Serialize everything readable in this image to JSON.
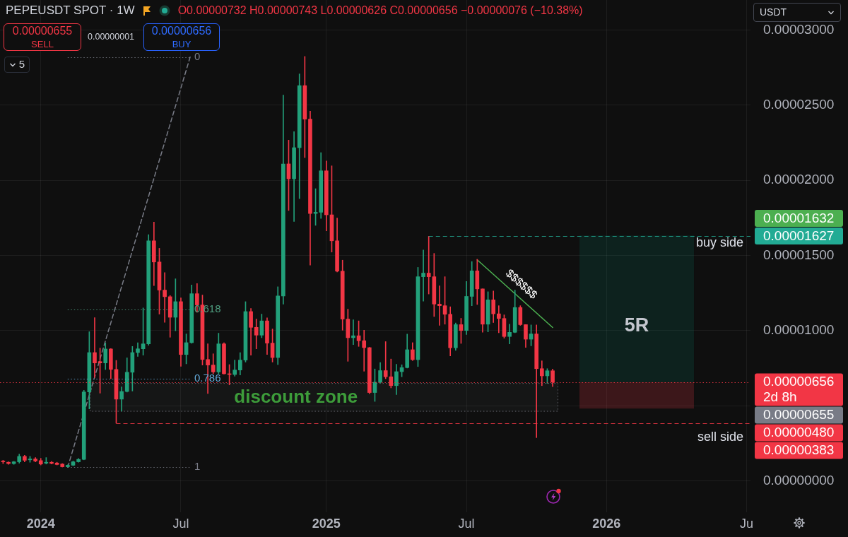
{
  "chart_data": {
    "type": "candlestick",
    "title": "PEPEUSDT SPOT · 1W",
    "subtitle": "O0.00000732 H0.00000743 L0.00000626 C0.00000656 −0.00000076 (−10.38%)",
    "x": [
      "2023-11-13",
      "2023-11-20",
      "2023-11-27",
      "2023-12-04",
      "2023-12-11",
      "2023-12-18",
      "2023-12-25",
      "2024-01-01",
      "2024-01-08",
      "2024-01-15",
      "2024-01-22",
      "2024-01-29",
      "2024-02-05",
      "2024-02-12",
      "2024-02-19",
      "2024-02-26",
      "2024-03-04",
      "2024-03-11",
      "2024-03-18",
      "2024-03-25",
      "2024-04-01",
      "2024-04-08",
      "2024-04-15",
      "2024-04-22",
      "2024-04-29",
      "2024-05-06",
      "2024-05-13",
      "2024-05-20",
      "2024-05-27",
      "2024-06-03",
      "2024-06-10",
      "2024-06-17",
      "2024-06-24",
      "2024-07-01",
      "2024-07-08",
      "2024-07-15",
      "2024-07-22",
      "2024-07-29",
      "2024-08-05",
      "2024-08-12",
      "2024-08-19",
      "2024-08-26",
      "2024-09-02",
      "2024-09-09",
      "2024-09-16",
      "2024-09-23",
      "2024-09-30",
      "2024-10-07",
      "2024-10-14",
      "2024-10-21",
      "2024-10-28",
      "2024-11-04",
      "2024-11-11",
      "2024-11-18",
      "2024-11-25",
      "2024-12-02",
      "2024-12-09",
      "2024-12-16",
      "2024-12-23",
      "2024-12-30",
      "2025-01-06",
      "2025-01-13",
      "2025-01-20",
      "2025-01-27",
      "2025-02-03",
      "2025-02-10",
      "2025-02-17",
      "2025-02-24",
      "2025-03-03",
      "2025-03-10",
      "2025-03-17",
      "2025-03-24",
      "2025-03-31",
      "2025-04-07",
      "2025-04-14",
      "2025-04-21",
      "2025-04-28",
      "2025-05-05",
      "2025-05-12",
      "2025-05-19",
      "2025-05-26",
      "2025-06-02",
      "2025-06-09",
      "2025-06-16",
      "2025-06-23",
      "2025-06-30",
      "2025-07-07",
      "2025-07-14",
      "2025-07-21",
      "2025-07-28",
      "2025-08-04",
      "2025-08-11",
      "2025-08-18",
      "2025-08-25",
      "2025-09-01",
      "2025-09-08",
      "2025-09-15",
      "2025-09-22",
      "2025-09-29",
      "2025-10-06",
      "2025-10-13",
      "2025-10-20",
      "2025-10-27"
    ],
    "ohlc": [
      [
        1.31e-06,
        1.36e-06,
        1.14e-06,
        1.26e-06
      ],
      [
        1.23e-06,
        1.26e-06,
        1.09e-06,
        1.14e-06
      ],
      [
        1.14e-06,
        1.29e-06,
        1.09e-06,
        1.26e-06
      ],
      [
        1.26e-06,
        1.77e-06,
        1.17e-06,
        1.62e-06
      ],
      [
        1.62e-06,
        1.7e-06,
        1.26e-06,
        1.36e-06
      ],
      [
        1.39e-06,
        1.62e-06,
        1.23e-06,
        1.45e-06
      ],
      [
        1.45e-06,
        1.54e-06,
        1.26e-06,
        1.31e-06
      ],
      [
        1.34e-06,
        1.49e-06,
        1.05e-06,
        1.11e-06
      ],
      [
        1.17e-06,
        1.54e-06,
        1.11e-06,
        1.23e-06
      ],
      [
        1.23e-06,
        1.28e-06,
        1.11e-06,
        1.15e-06
      ],
      [
        1.18e-06,
        1.23e-06,
        1.05e-06,
        1.08e-06
      ],
      [
        1.11e-06,
        1.14e-06,
        9.1e-07,
        9.3e-07
      ],
      [
        9.3e-07,
        1.06e-06,
        9e-07,
        1.03e-06
      ],
      [
        1.03e-06,
        1.31e-06,
        1e-06,
        1.26e-06
      ],
      [
        1.26e-06,
        1.48e-06,
        1.23e-06,
        1.42e-06
      ],
      [
        1.42e-06,
        6.02e-06,
        1.39e-06,
        5.91e-06
      ],
      [
        5.91e-06,
        9.92e-06,
        4.78e-06,
        8.53e-06
      ],
      [
        8.53e-06,
        1.085e-05,
        6.87e-06,
        7.84e-06
      ],
      [
        7.93e-06,
        8.83e-06,
        5.83e-06,
        7.84e-06
      ],
      [
        7.84e-06,
        9.17e-06,
        7.4e-06,
        8.77e-06
      ],
      [
        8.77e-06,
        8.8e-06,
        6.79e-06,
        7.41e-06
      ],
      [
        7.41e-06,
        8.01e-06,
        3.83e-06,
        5.43e-06
      ],
      [
        5.43e-06,
        6.25e-06,
        4.63e-06,
        5.94e-06
      ],
      [
        5.94e-06,
        8.18e-06,
        5.9e-06,
        7.22e-06
      ],
      [
        7.22e-06,
        8.94e-06,
        5.97e-06,
        8.53e-06
      ],
      [
        8.53e-06,
        9.19e-06,
        8.28e-06,
        8.78e-06
      ],
      [
        8.78e-06,
        1.15e-05,
        8.36e-06,
        9.11e-06
      ],
      [
        9.11e-06,
        1.638e-05,
        9.02e-06,
        1.597e-05
      ],
      [
        1.597e-05,
        1.721e-05,
        1.299e-05,
        1.456e-05
      ],
      [
        1.456e-05,
        1.547e-05,
        1.109e-05,
        1.269e-05
      ],
      [
        1.269e-05,
        1.385e-05,
        1.055e-05,
        1.225e-05
      ],
      [
        1.225e-05,
        1.233e-05,
        9.55e-06,
        1.088e-05
      ],
      [
        1.088e-05,
        1.344e-05,
        9.98e-06,
        1.192e-05
      ],
      [
        1.192e-05,
        1.217e-05,
        7.62e-06,
        8.4e-06
      ],
      [
        8.4e-06,
        9.77e-06,
        7.78e-06,
        9.19e-06
      ],
      [
        9.19e-06,
        1.303e-05,
        9.15e-06,
        1.245e-05
      ],
      [
        1.245e-05,
        1.312e-05,
        1.121e-05,
        1.17e-05
      ],
      [
        1.17e-05,
        1.236e-05,
        7.7e-06,
        8.07e-06
      ],
      [
        8.07e-06,
        9.11e-06,
        5.8e-06,
        7.7e-06
      ],
      [
        7.7e-06,
        8.45e-06,
        7.12e-06,
        7.24e-06
      ],
      [
        7.24e-06,
        9.82e-06,
        7.12e-06,
        9.11e-06
      ],
      [
        9.11e-06,
        9.19e-06,
        7.1e-06,
        7.12e-06
      ],
      [
        7.12e-06,
        7.73e-06,
        6.38e-06,
        7.07e-06
      ],
      [
        7.07e-06,
        8.03e-06,
        6.96e-06,
        7.37e-06
      ],
      [
        7.37e-06,
        8.53e-06,
        7.04e-06,
        8.03e-06
      ],
      [
        8.03e-06,
        1.192e-05,
        7.9e-06,
        1.126e-05
      ],
      [
        1.126e-05,
        1.147e-05,
        8.36e-06,
        1.021e-05
      ],
      [
        1.021e-05,
        1.076e-05,
        8.78e-06,
        9.69e-06
      ],
      [
        9.69e-06,
        1.109e-05,
        9.52e-06,
        1.064e-05
      ],
      [
        1.064e-05,
        1.084e-05,
        8.4e-06,
        9.16e-06
      ],
      [
        9.16e-06,
        1.01e-05,
        7.9e-06,
        8.2e-06
      ],
      [
        8.2e-06,
        1.291e-05,
        7.73e-06,
        1.23e-05
      ],
      [
        1.23e-05,
        2.567e-05,
        1.175e-05,
        2.109e-05
      ],
      [
        2.109e-05,
        2.267e-05,
        1.799e-05,
        2.01e-05
      ],
      [
        2.01e-05,
        2.324e-05,
        1.726e-05,
        2.217e-05
      ],
      [
        2.217e-05,
        2.708e-05,
        1.878e-05,
        2.63e-05
      ],
      [
        2.63e-05,
        2.824e-05,
        2.151e-05,
        2.407e-05
      ],
      [
        2.407e-05,
        2.46e-05,
        1.435e-05,
        1.779e-05
      ],
      [
        1.779e-05,
        1.944e-05,
        1.7e-05,
        1.787e-05
      ],
      [
        1.787e-05,
        2.184e-05,
        1.746e-05,
        2.063e-05
      ],
      [
        2.063e-05,
        2.129e-05,
        1.663e-05,
        1.77e-05
      ],
      [
        1.77e-05,
        2.096e-05,
        1.522e-05,
        1.597e-05
      ],
      [
        1.597e-05,
        1.749e-05,
        1.39e-05,
        1.395e-05
      ],
      [
        1.395e-05,
        1.468e-05,
        1.002e-05,
        1.076e-05
      ],
      [
        1.076e-05,
        1.142e-05,
        7.95e-06,
        9.52e-06
      ],
      [
        9.52e-06,
        1.071e-05,
        9.06e-06,
        9.65e-06
      ],
      [
        9.65e-06,
        1.064e-05,
        8.94e-06,
        9.32e-06
      ],
      [
        9.32e-06,
        1.002e-05,
        7.29e-06,
        8.86e-06
      ],
      [
        8.86e-06,
        8.88e-06,
        5.79e-06,
        5.87e-06
      ],
      [
        5.87e-06,
        7.44e-06,
        5.28e-06,
        6.56e-06
      ],
      [
        6.56e-06,
        7.87e-06,
        6.5e-06,
        7.33e-06
      ],
      [
        7.33e-06,
        9.26e-06,
        6.79e-06,
        6.92e-06
      ],
      [
        6.92e-06,
        8.1e-06,
        6.18e-06,
        6.33e-06
      ],
      [
        6.33e-06,
        7.75e-06,
        5.74e-06,
        7.26e-06
      ],
      [
        7.26e-06,
        7.72e-06,
        6.92e-06,
        7.53e-06
      ],
      [
        7.53e-06,
        9.76e-06,
        7.5e-06,
        8.72e-06
      ],
      [
        8.72e-06,
        9.19e-06,
        8e-06,
        8.06e-06
      ],
      [
        8.06e-06,
        1.42e-05,
        7.6e-06,
        1.358e-05
      ],
      [
        1.358e-05,
        1.536e-05,
        1.196e-05,
        1.382e-05
      ],
      [
        1.382e-05,
        1.627e-05,
        1.243e-05,
        1.358e-05
      ],
      [
        1.358e-05,
        1.513e-05,
        1.093e-05,
        1.176e-05
      ],
      [
        1.176e-05,
        1.297e-05,
        1.034e-05,
        1.165e-05
      ],
      [
        1.165e-05,
        1.358e-05,
        1.042e-05,
        1.108e-05
      ],
      [
        1.108e-05,
        1.158e-05,
        8.31e-06,
        8.85e-06
      ],
      [
        8.85e-06,
        1.05e-05,
        8.68e-06,
        1.039e-05
      ],
      [
        1.039e-05,
        1.081e-05,
        9.14e-06,
        1e-05
      ],
      [
        1e-05,
        1.327e-05,
        9.73e-06,
        1.227e-05
      ],
      [
        1.227e-05,
        1.459e-05,
        1.165e-05,
        1.397e-05
      ],
      [
        1.397e-05,
        1.474e-05,
        1.173e-05,
        1.277e-05
      ],
      [
        1.277e-05,
        1.277e-05,
        9.88e-06,
        1.042e-05
      ],
      [
        1.042e-05,
        1.258e-05,
        9.91e-06,
        1.204e-05
      ],
      [
        1.204e-05,
        1.263e-05,
        1.053e-05,
        1.111e-05
      ],
      [
        1.111e-05,
        1.165e-05,
        9.85e-06,
        1.08e-05
      ],
      [
        1.08e-05,
        1.104e-05,
        9.49e-06,
        9.6e-06
      ],
      [
        9.6e-06,
        1.042e-05,
        9.11e-06,
        9.88e-06
      ],
      [
        9.88e-06,
        1.269e-05,
        9.85e-06,
        1.153e-05
      ],
      [
        1.153e-05,
        1.165e-05,
        1.034e-05,
        1.039e-05
      ],
      [
        1.039e-05,
        1.039e-05,
        8.88e-06,
        9.42e-06
      ],
      [
        9.42e-06,
        1.037e-05,
        8.98e-06,
        9.77e-06
      ],
      [
        9.77e-06,
        1.037e-05,
        2.87e-06,
        7.46e-06
      ],
      [
        7.46e-06,
        7.98e-06,
        6.33e-06,
        6.98e-06
      ],
      [
        6.98e-06,
        7.46e-06,
        6.48e-06,
        7.32e-06
      ],
      [
        7.32e-06,
        7.43e-06,
        6.26e-06,
        6.56e-06
      ]
    ],
    "colors": [
      "#f23645",
      "#f23645",
      "#22a07a",
      "#22a07a",
      "#f23645",
      "#22a07a",
      "#f23645",
      "#f23645",
      "#22a07a",
      "#f23645",
      "#f23645",
      "#f23645",
      "#22a07a",
      "#22a07a",
      "#22a07a",
      "#22a07a",
      "#22a07a",
      "#f23645",
      "#f23645",
      "#22a07a",
      "#f23645",
      "#f23645",
      "#22a07a",
      "#22a07a",
      "#22a07a",
      "#22a07a",
      "#22a07a",
      "#22a07a",
      "#f23645",
      "#f23645",
      "#f23645",
      "#f23645",
      "#22a07a",
      "#f23645",
      "#22a07a",
      "#22a07a",
      "#f23645",
      "#f23645",
      "#f23645",
      "#f23645",
      "#22a07a",
      "#f23645",
      "#f23645",
      "#22a07a",
      "#22a07a",
      "#22a07a",
      "#f23645",
      "#f23645",
      "#22a07a",
      "#f23645",
      "#f23645",
      "#22a07a",
      "#22a07a",
      "#f23645",
      "#22a07a",
      "#22a07a",
      "#f23645",
      "#f23645",
      "#22a07a",
      "#22a07a",
      "#f23645",
      "#f23645",
      "#f23645",
      "#f23645",
      "#f23645",
      "#22a07a",
      "#f23645",
      "#f23645",
      "#f23645",
      "#22a07a",
      "#22a07a",
      "#f23645",
      "#f23645",
      "#22a07a",
      "#22a07a",
      "#22a07a",
      "#f23645",
      "#22a07a",
      "#22a07a",
      "#f23645",
      "#f23645",
      "#f23645",
      "#f23645",
      "#f23645",
      "#22a07a",
      "#f23645",
      "#22a07a",
      "#22a07a",
      "#f23645",
      "#f23645",
      "#22a07a",
      "#f23645",
      "#f23645",
      "#f23645",
      "#22a07a",
      "#22a07a",
      "#f23645",
      "#f23645",
      "#22a07a",
      "#f23645",
      "#f23645",
      "#22a07a",
      "#f23645"
    ],
    "series": [
      {
        "type": "line",
        "x": [
          "2024-02-05",
          "2024-07-13"
        ],
        "values": [
          9e-07,
          2.82e-05
        ],
        "color": "#787b86",
        "line_style": "dashed"
      },
      {
        "type": "line",
        "x": [
          "2025-07-21",
          "2025-10-27"
        ],
        "values": [
          1.47e-05,
          1.02e-05
        ],
        "color": "#4caf50",
        "line_style": "solid"
      }
    ],
    "xlim": [
      "2023-11-09",
      "2026-07-11"
    ],
    "xticks": [
      {
        "value": "2024-01-01",
        "label": "2024"
      },
      {
        "value": "2024-07-01",
        "label": "Jul"
      },
      {
        "value": "2025-01-06",
        "label": "2025"
      },
      {
        "value": "2025-07-07",
        "label": "Jul"
      },
      {
        "value": "2026-01-05",
        "label": "2026"
      },
      {
        "value": "2026-07-06",
        "label": "Ju"
      }
    ],
    "ylim": [
      -2.1e-06,
      3.2e-05
    ],
    "yticks": [
      {
        "value": 0,
        "label": "0.00000000"
      },
      {
        "value": 5e-06,
        "label": null
      },
      {
        "value": 1e-05,
        "label": "0.00001000"
      },
      {
        "value": 1.5e-05,
        "label": "0.00001500"
      },
      {
        "value": 2e-05,
        "label": "0.00002000"
      },
      {
        "value": 2.5e-05,
        "label": "0.00002500"
      },
      {
        "value": 3e-05,
        "label": "0.00003000"
      }
    ],
    "grid": true,
    "bands": [
      {
        "axis": "y",
        "from": 4.6e-06,
        "to": 6.5e-06,
        "label": "discount zone",
        "color": "#787b86"
      },
      {
        "axis": "y",
        "from": 6.56e-06,
        "to": 1.632e-05,
        "label": "5R",
        "color": "#089981"
      },
      {
        "axis": "y",
        "from": 4.8e-06,
        "to": 6.56e-06,
        "color": "#f23645"
      }
    ],
    "ref_lines": [
      {
        "axis": "y",
        "value": 2.82e-05,
        "color": "#787b86",
        "line_style": "dotted"
      },
      {
        "axis": "y",
        "value": 1.14e-05,
        "color": "#4f9f80",
        "line_style": "dotted"
      },
      {
        "axis": "y",
        "value": 6.8e-06,
        "color": "#64a9d8",
        "line_style": "dotted"
      },
      {
        "axis": "y",
        "value": 9e-07,
        "color": "#787b86",
        "line_style": "dotted"
      },
      {
        "axis": "y",
        "value": 1.627e-05,
        "label": "0.00001627",
        "color": "#22ab94",
        "line_style": "dashed"
      },
      {
        "axis": "y",
        "value": 6.56e-06,
        "label": "0.00000656\n2d 8h",
        "color": "#f23645",
        "line_style": "dotted"
      },
      {
        "axis": "y",
        "value": 3.83e-06,
        "label": "0.00000383",
        "color": "#f23645",
        "line_style": "dashed"
      }
    ],
    "annotations": [
      "0.00000655",
      "SELL",
      "0.00000001",
      "0.00000656",
      "BUY",
      "5",
      "USDT",
      "buy side",
      "sell side",
      "$$$$$$",
      "0",
      "0.618",
      "0.786",
      "1",
      "0.00001632",
      "0.00000655",
      "0.00000480"
    ]
  }
}
